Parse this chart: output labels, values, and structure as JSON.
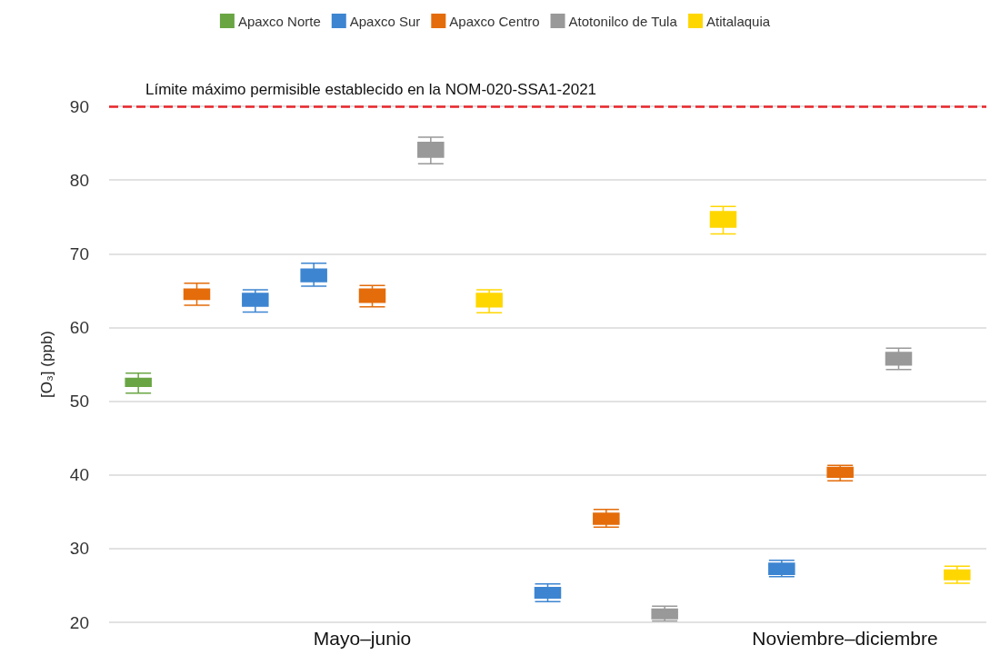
{
  "chart_data": {
    "type": "box",
    "ylabel": "[O₃] (ppb)",
    "categories": [
      null,
      null,
      null,
      null,
      null,
      null,
      null,
      null,
      null,
      null,
      null,
      null,
      null,
      null,
      null
    ],
    "ylim": [
      20,
      90
    ],
    "yticks": [
      20,
      30,
      40,
      50,
      60,
      70,
      80,
      90
    ],
    "grid": "y",
    "legend": "top",
    "ref_lines": [
      {
        "axis": "y",
        "value": 90,
        "label": "Límite máximo permisible establecido en la NOM-020-SSA1-2021",
        "color": "#e8262b",
        "line_style": "dashed"
      }
    ],
    "annotations": [
      "Mayo–junio",
      "Noviembre–diciembre"
    ],
    "series": [
      {
        "name": "Apaxco Norte",
        "color": "#6aa544",
        "boxes": [
          {
            "low": 51.1,
            "q1": 52.0,
            "median": 52.5,
            "q3": 53.1,
            "high": 53.8
          },
          null,
          null,
          null,
          null,
          null,
          null,
          null,
          null,
          null,
          null,
          null,
          null,
          null,
          null
        ]
      },
      {
        "name": "Apaxco Sur",
        "color": "#3d85d1",
        "boxes": [
          null,
          null,
          {
            "low": 62.1,
            "q1": 62.9,
            "median": 63.8,
            "q3": 64.6,
            "high": 65.1
          },
          {
            "low": 65.6,
            "q1": 66.2,
            "median": 67.1,
            "q3": 67.9,
            "high": 68.7
          },
          null,
          null,
          null,
          {
            "low": 22.8,
            "q1": 23.3,
            "median": 24.0,
            "q3": 24.7,
            "high": 25.2
          },
          null,
          null,
          null,
          {
            "low": 26.2,
            "q1": 26.5,
            "median": 27.3,
            "q3": 28.0,
            "high": 28.4
          },
          null,
          null,
          null
        ]
      },
      {
        "name": "Apaxco Centro",
        "color": "#e46c0a",
        "boxes": [
          null,
          {
            "low": 63.0,
            "q1": 63.8,
            "median": 64.6,
            "q3": 65.2,
            "high": 66.0
          },
          null,
          null,
          {
            "low": 62.8,
            "q1": 63.4,
            "median": 64.3,
            "q3": 65.2,
            "high": 65.7
          },
          null,
          null,
          null,
          {
            "low": 32.9,
            "q1": 33.3,
            "median": 34.0,
            "q3": 34.8,
            "high": 35.3
          },
          null,
          null,
          null,
          {
            "low": 39.2,
            "q1": 39.7,
            "median": 40.4,
            "q3": 41.0,
            "high": 41.3
          },
          null,
          null
        ]
      },
      {
        "name": "Atotonilco de Tula",
        "color": "#999999",
        "boxes": [
          null,
          null,
          null,
          null,
          null,
          {
            "low": 82.2,
            "q1": 83.1,
            "median": 84.1,
            "q3": 85.1,
            "high": 85.8
          },
          null,
          null,
          null,
          {
            "low": 20.2,
            "q1": 20.5,
            "median": 21.2,
            "q3": 21.8,
            "high": 22.2
          },
          null,
          null,
          null,
          {
            "low": 54.3,
            "q1": 54.9,
            "median": 55.8,
            "q3": 56.6,
            "high": 57.2
          },
          null
        ]
      },
      {
        "name": "Atitalaquia",
        "color": "#ffd700",
        "boxes": [
          null,
          null,
          null,
          null,
          null,
          null,
          {
            "low": 62.0,
            "q1": 62.8,
            "median": 63.7,
            "q3": 64.6,
            "high": 65.1
          },
          null,
          null,
          null,
          {
            "low": 72.7,
            "q1": 73.6,
            "median": 74.7,
            "q3": 75.7,
            "high": 76.4
          },
          null,
          null,
          null,
          {
            "low": 25.3,
            "q1": 25.8,
            "median": 26.5,
            "q3": 27.1,
            "high": 27.6
          }
        ]
      }
    ]
  }
}
